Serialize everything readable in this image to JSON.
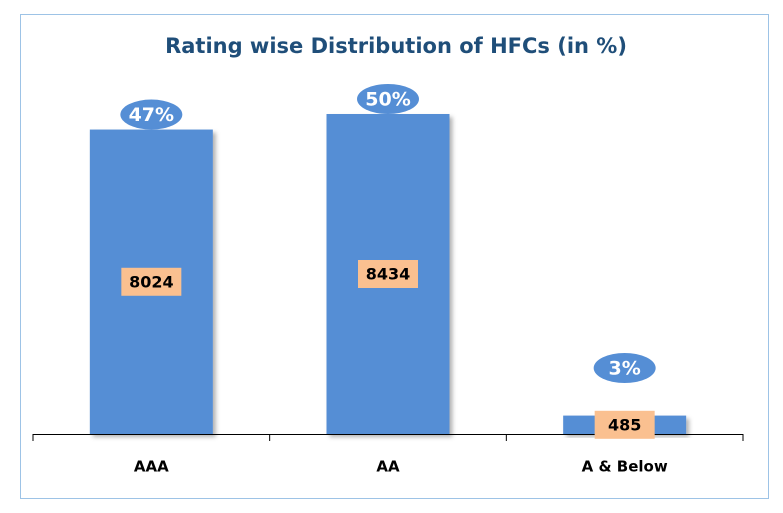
{
  "chart_data": {
    "type": "bar",
    "title": "Rating wise Distribution of HFCs (in %)",
    "categories": [
      "AAA",
      "AA",
      "A & Below"
    ],
    "values": [
      8024,
      8434,
      485
    ],
    "shares": [
      47,
      50,
      3
    ],
    "share_labels": [
      "47%",
      "50%",
      "3%"
    ],
    "color": "#558ed5",
    "label_color": "#fac090"
  }
}
